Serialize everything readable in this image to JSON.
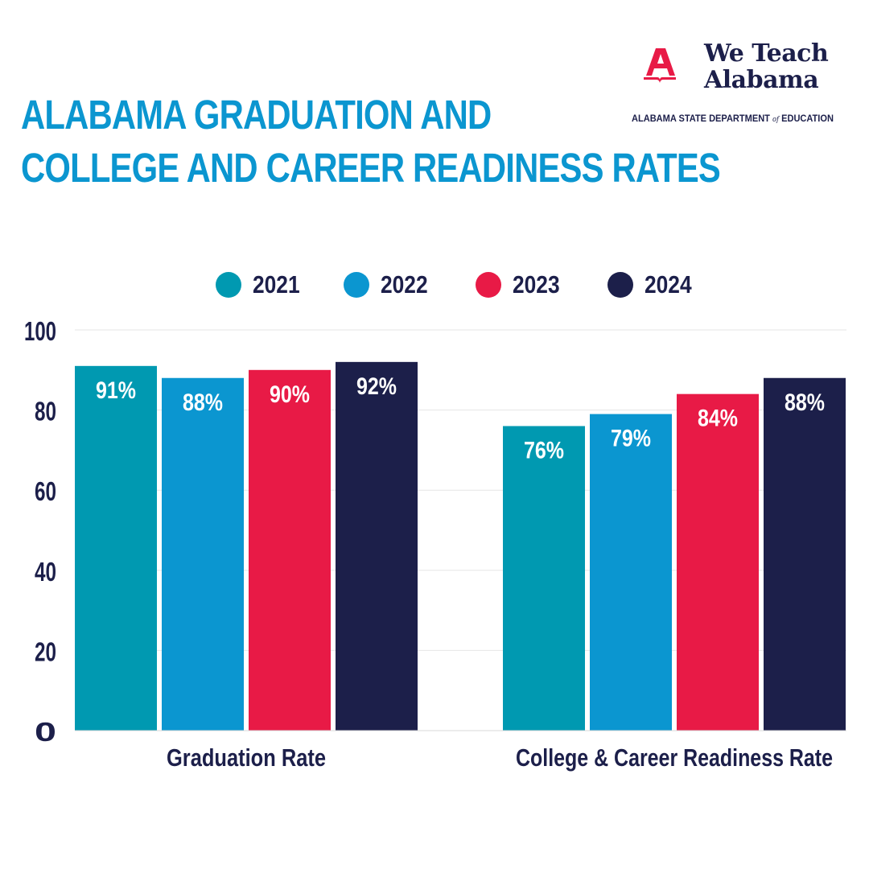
{
  "title": {
    "line1": "ALABAMA GRADUATION AND",
    "line2": "COLLEGE AND CAREER READINESS RATES"
  },
  "logo": {
    "line1": "We Teach",
    "line2": "Alabama",
    "department_pre": "ALABAMA STATE  DEPARTMENT ",
    "department_of": "of",
    "department_post": " EDUCATION"
  },
  "colors": {
    "title": "#0b96d0",
    "text": "#1c1f4a",
    "series": [
      "#0099b1",
      "#0b96d0",
      "#e81a46",
      "#1c1f4a"
    ],
    "logo_red": "#e81a46"
  },
  "chart_data": {
    "type": "bar",
    "categories": [
      "Graduation Rate",
      "College & Career Readiness Rate"
    ],
    "series": [
      {
        "name": "2021",
        "values": [
          91,
          76
        ],
        "labels": [
          "91%",
          "76%"
        ]
      },
      {
        "name": "2022",
        "values": [
          88,
          79
        ],
        "labels": [
          "88%",
          "79%"
        ]
      },
      {
        "name": "2023",
        "values": [
          90,
          84
        ],
        "labels": [
          "90%",
          "84%"
        ]
      },
      {
        "name": "2024",
        "values": [
          92,
          88
        ],
        "labels": [
          "92%",
          "88%"
        ]
      }
    ],
    "yticks": [
      0,
      20,
      40,
      60,
      80,
      100
    ],
    "ylim": [
      0,
      100
    ],
    "grid": true,
    "legend_position": "top"
  }
}
